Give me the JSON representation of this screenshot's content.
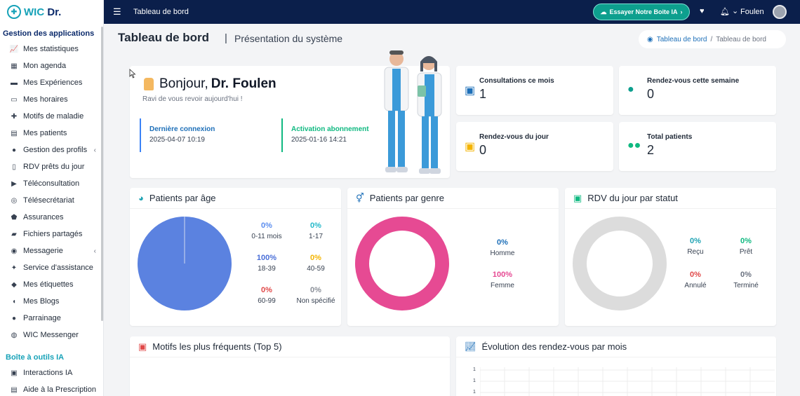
{
  "brand": {
    "wic": "WIC",
    "dr": "Dr."
  },
  "sidebar": {
    "section1": "Gestion des applications",
    "items": [
      {
        "label": "Mes statistiques",
        "icon": "chart-line-icon",
        "glyph": "📈"
      },
      {
        "label": "Mon agenda",
        "icon": "calendar-icon",
        "glyph": "▦"
      },
      {
        "label": "Mes Expériences",
        "icon": "briefcase-icon",
        "glyph": "▬"
      },
      {
        "label": "Mes horaires",
        "icon": "car-icon",
        "glyph": "▭"
      },
      {
        "label": "Motifs de maladie",
        "icon": "disease-icon",
        "glyph": "✚"
      },
      {
        "label": "Mes patients",
        "icon": "bed-icon",
        "glyph": "▤"
      },
      {
        "label": "Gestion des profils",
        "icon": "user-gear-icon",
        "glyph": "●",
        "chevron": "‹"
      },
      {
        "label": "RDV prêts du jour",
        "icon": "phone-list-icon",
        "glyph": "▯"
      },
      {
        "label": "Téléconsultation",
        "icon": "video-icon",
        "glyph": "▶"
      },
      {
        "label": "Télésecrétariat",
        "icon": "headset-icon",
        "glyph": "◎"
      },
      {
        "label": "Assurances",
        "icon": "shield-icon",
        "glyph": "⬟"
      },
      {
        "label": "Fichiers partagés",
        "icon": "folder-icon",
        "glyph": "▰"
      },
      {
        "label": "Messagerie",
        "icon": "comments-icon",
        "glyph": "◉",
        "chevron": "‹"
      },
      {
        "label": "Service d'assistance",
        "icon": "wrench-icon",
        "glyph": "✦"
      },
      {
        "label": "Mes étiquettes",
        "icon": "tags-icon",
        "glyph": "◆"
      },
      {
        "label": "Mes Blogs",
        "icon": "blog-icon",
        "glyph": "◖"
      },
      {
        "label": "Parrainage",
        "icon": "users-icon",
        "glyph": "●"
      },
      {
        "label": "WIC Messenger",
        "icon": "chat-icon",
        "glyph": "◍"
      }
    ],
    "section2": "Boîte à outils IA",
    "items2": [
      {
        "label": "Interactions IA",
        "icon": "robot-icon",
        "glyph": "▣"
      },
      {
        "label": "Aide à la Prescription",
        "icon": "prescription-icon",
        "glyph": "▤"
      }
    ]
  },
  "topbar": {
    "title": "Tableau de bord",
    "ai_button": "Essayer Notre Boite IA",
    "user": "Foulen"
  },
  "header": {
    "title": "Tableau de bord",
    "separator": "|",
    "subtitle": "Présentation du système",
    "breadcrumb_home": "Tableau de bord",
    "breadcrumb_sep": "/",
    "breadcrumb_current": "Tableau de bord"
  },
  "welcome": {
    "greeting": "Bonjour,",
    "name": "Dr. Foulen",
    "subtitle": "Ravi de vous revoir aujourd'hui !",
    "last_login_label": "Dernière connexion",
    "last_login_value": "2025-04-07 10:19",
    "activation_label": "Activation abonnement",
    "activation_value": "2025-01-16 14:21"
  },
  "kpis": [
    {
      "label": "Consultations ce mois",
      "value": "1",
      "icon": "calendar-check-icon",
      "color": "#1d6fb8"
    },
    {
      "label": "Rendez-vous cette semaine",
      "value": "0",
      "icon": "user-clock-icon",
      "color": "#0d9f8e"
    },
    {
      "label": "Rendez-vous du jour",
      "value": "0",
      "icon": "calendar-day-icon",
      "color": "#f4b400"
    },
    {
      "label": "Total patients",
      "value": "2",
      "icon": "users-icon",
      "color": "#10b981"
    }
  ],
  "age_card": {
    "title": "Patients par âge",
    "items": [
      {
        "pct": "0%",
        "label": "0-11 mois",
        "color": "#5b8def"
      },
      {
        "pct": "0%",
        "label": "1-17",
        "color": "#22b8c9"
      },
      {
        "pct": "100%",
        "label": "18-39",
        "color": "#4a6fd8"
      },
      {
        "pct": "0%",
        "label": "40-59",
        "color": "#f4b400"
      },
      {
        "pct": "0%",
        "label": "60-99",
        "color": "#e04848"
      },
      {
        "pct": "0%",
        "label": "Non spécifié",
        "color": "#8a8f98"
      }
    ]
  },
  "gender_card": {
    "title": "Patients par genre",
    "items": [
      {
        "pct": "0%",
        "label": "Homme",
        "color": "#1d6fb8"
      },
      {
        "pct": "100%",
        "label": "Femme",
        "color": "#e64a93"
      }
    ]
  },
  "status_card": {
    "title": "RDV du jour par statut",
    "items": [
      {
        "pct": "0%",
        "label": "Reçu",
        "color": "#1fa3b3"
      },
      {
        "pct": "0%",
        "label": "Prêt",
        "color": "#10b981"
      },
      {
        "pct": "0%",
        "label": "Annulé",
        "color": "#e04848"
      },
      {
        "pct": "0%",
        "label": "Terminé",
        "color": "#6b7280"
      }
    ]
  },
  "motifs_card": {
    "title": "Motifs les plus fréquents (Top 5)"
  },
  "evolution_card": {
    "title": "Évolution des rendez-vous par mois",
    "ticks": [
      "1",
      "1",
      "1"
    ]
  },
  "chart_data": [
    {
      "type": "pie",
      "categories": [
        "0-11 mois",
        "1-17",
        "18-39",
        "40-59",
        "60-99",
        "Non spécifié"
      ],
      "values": [
        0,
        0,
        100,
        0,
        0,
        0
      ]
    },
    {
      "type": "pie",
      "categories": [
        "Homme",
        "Femme"
      ],
      "values": [
        0,
        100
      ]
    },
    {
      "type": "pie",
      "categories": [
        "Reçu",
        "Prêt",
        "Annulé",
        "Terminé"
      ],
      "values": [
        0,
        0,
        0,
        0
      ]
    }
  ]
}
